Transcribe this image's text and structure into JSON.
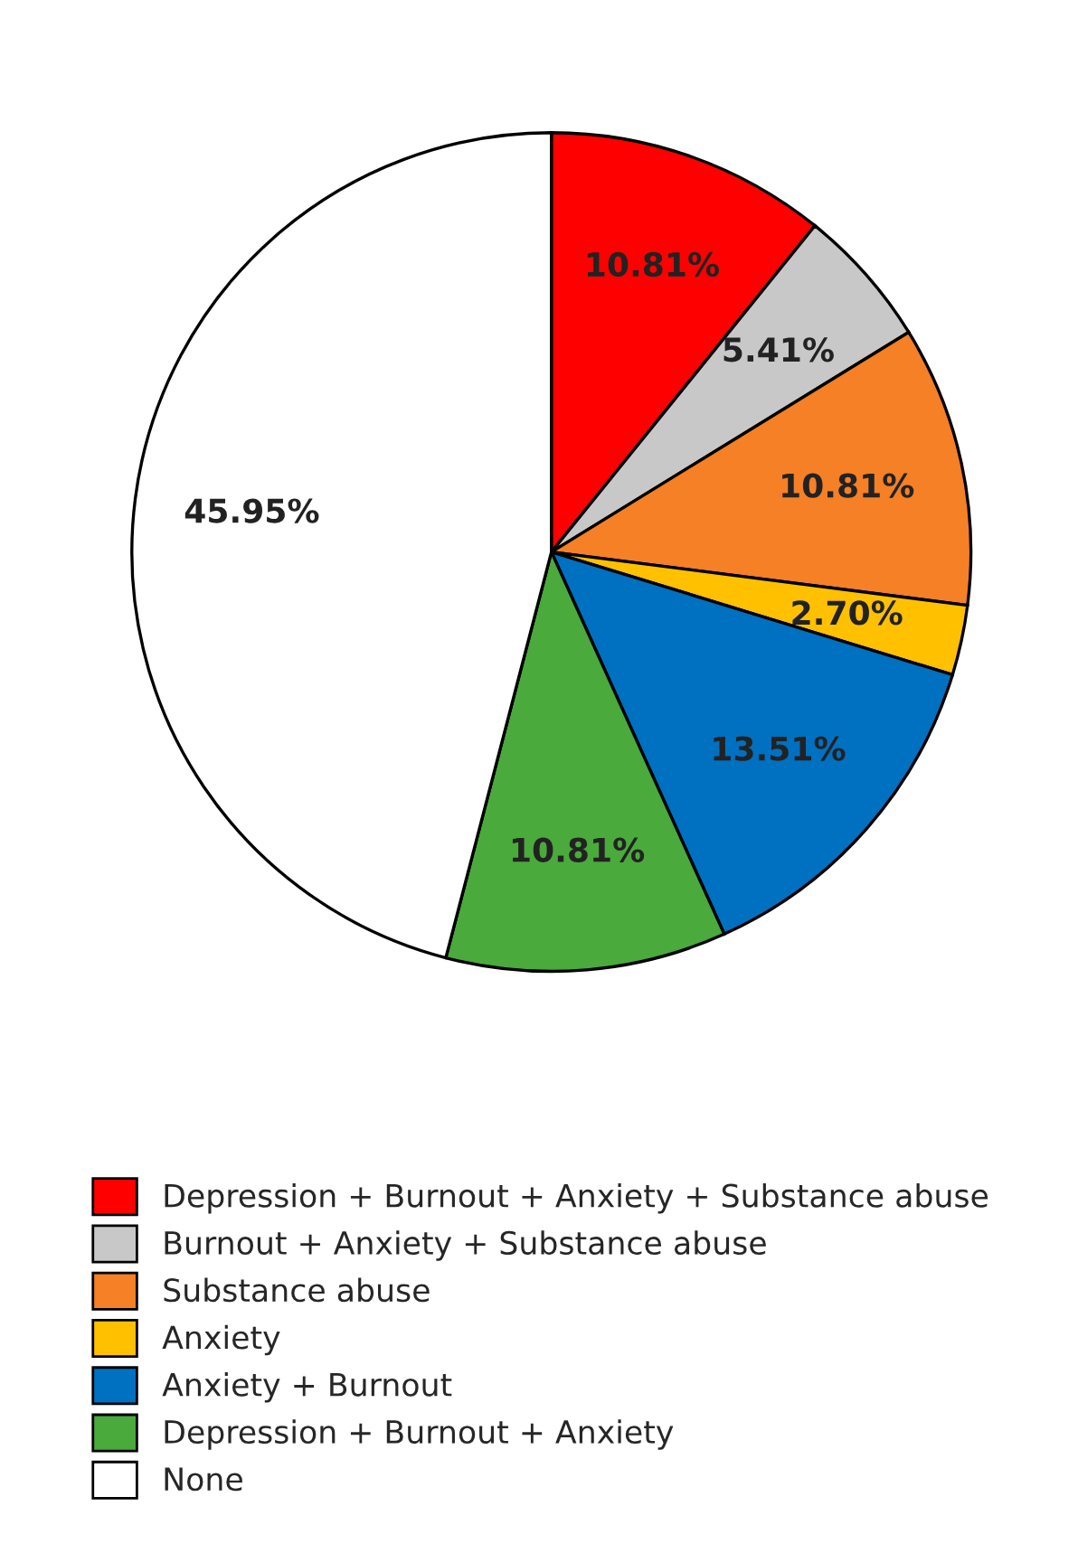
{
  "chart_data": {
    "type": "pie",
    "categories": [
      "Depression + Burnout + Anxiety + Substance abuse",
      "Burnout + Anxiety + Substance abuse",
      "Substance abuse",
      "Anxiety",
      "Anxiety + Burnout",
      "Depression + Burnout + Anxiety",
      "None"
    ],
    "values": [
      10.81,
      5.41,
      10.81,
      2.7,
      13.51,
      10.81,
      45.95
    ],
    "value_labels": [
      "10.81%",
      "5.41%",
      "10.81%",
      "2.70%",
      "13.51%",
      "10.81%",
      "45.95%"
    ],
    "colors": [
      "#ff0000",
      "#c8c8c8",
      "#f58025",
      "#ffc000",
      "#0070c0",
      "#4aaa3c",
      "#ffffff"
    ],
    "legend": "bottom"
  }
}
